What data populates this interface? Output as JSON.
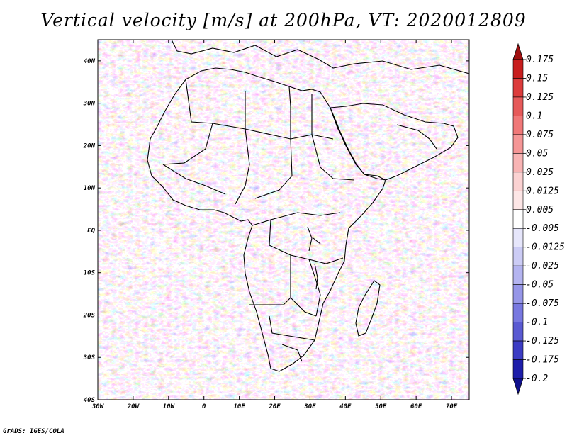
{
  "title": "Vertical velocity [m/s] at 200hPa, VT: 2020012809",
  "credit": "GrADS: IGES/COLA",
  "map": {
    "lon_range": [
      -30,
      75
    ],
    "lat_range": [
      -40,
      45
    ],
    "lon_ticks": [
      "30W",
      "20W",
      "10W",
      "0",
      "10E",
      "20E",
      "30E",
      "40E",
      "50E",
      "60E",
      "70E"
    ],
    "lon_tick_values": [
      -30,
      -20,
      -10,
      0,
      10,
      20,
      30,
      40,
      50,
      60,
      70
    ],
    "lat_ticks": [
      "40N",
      "30N",
      "20N",
      "10N",
      "EQ",
      "10S",
      "20S",
      "30S",
      "40S"
    ],
    "lat_tick_values": [
      40,
      30,
      20,
      10,
      0,
      -10,
      -20,
      -30,
      -40
    ]
  },
  "colorbar": {
    "labels": [
      "0.175",
      "0.15",
      "0.125",
      "0.1",
      "0.075",
      "0.05",
      "0.025",
      "0.0125",
      "0.005",
      "-0.005",
      "-0.0125",
      "-0.025",
      "-0.05",
      "-0.075",
      "-0.1",
      "-0.125",
      "-0.175",
      "-0.2"
    ],
    "colors": [
      "#a01010",
      "#c81e1e",
      "#dc3c3c",
      "#e65a5a",
      "#f07878",
      "#f59696",
      "#f8b4b4",
      "#fbd2d2",
      "#fde6e6",
      "#ffffff",
      "#e6e6fb",
      "#ccccf5",
      "#b4b4f0",
      "#9696e8",
      "#7878e0",
      "#5a5ad2",
      "#3c3cc4",
      "#1e1eaa",
      "#10108c"
    ]
  }
}
